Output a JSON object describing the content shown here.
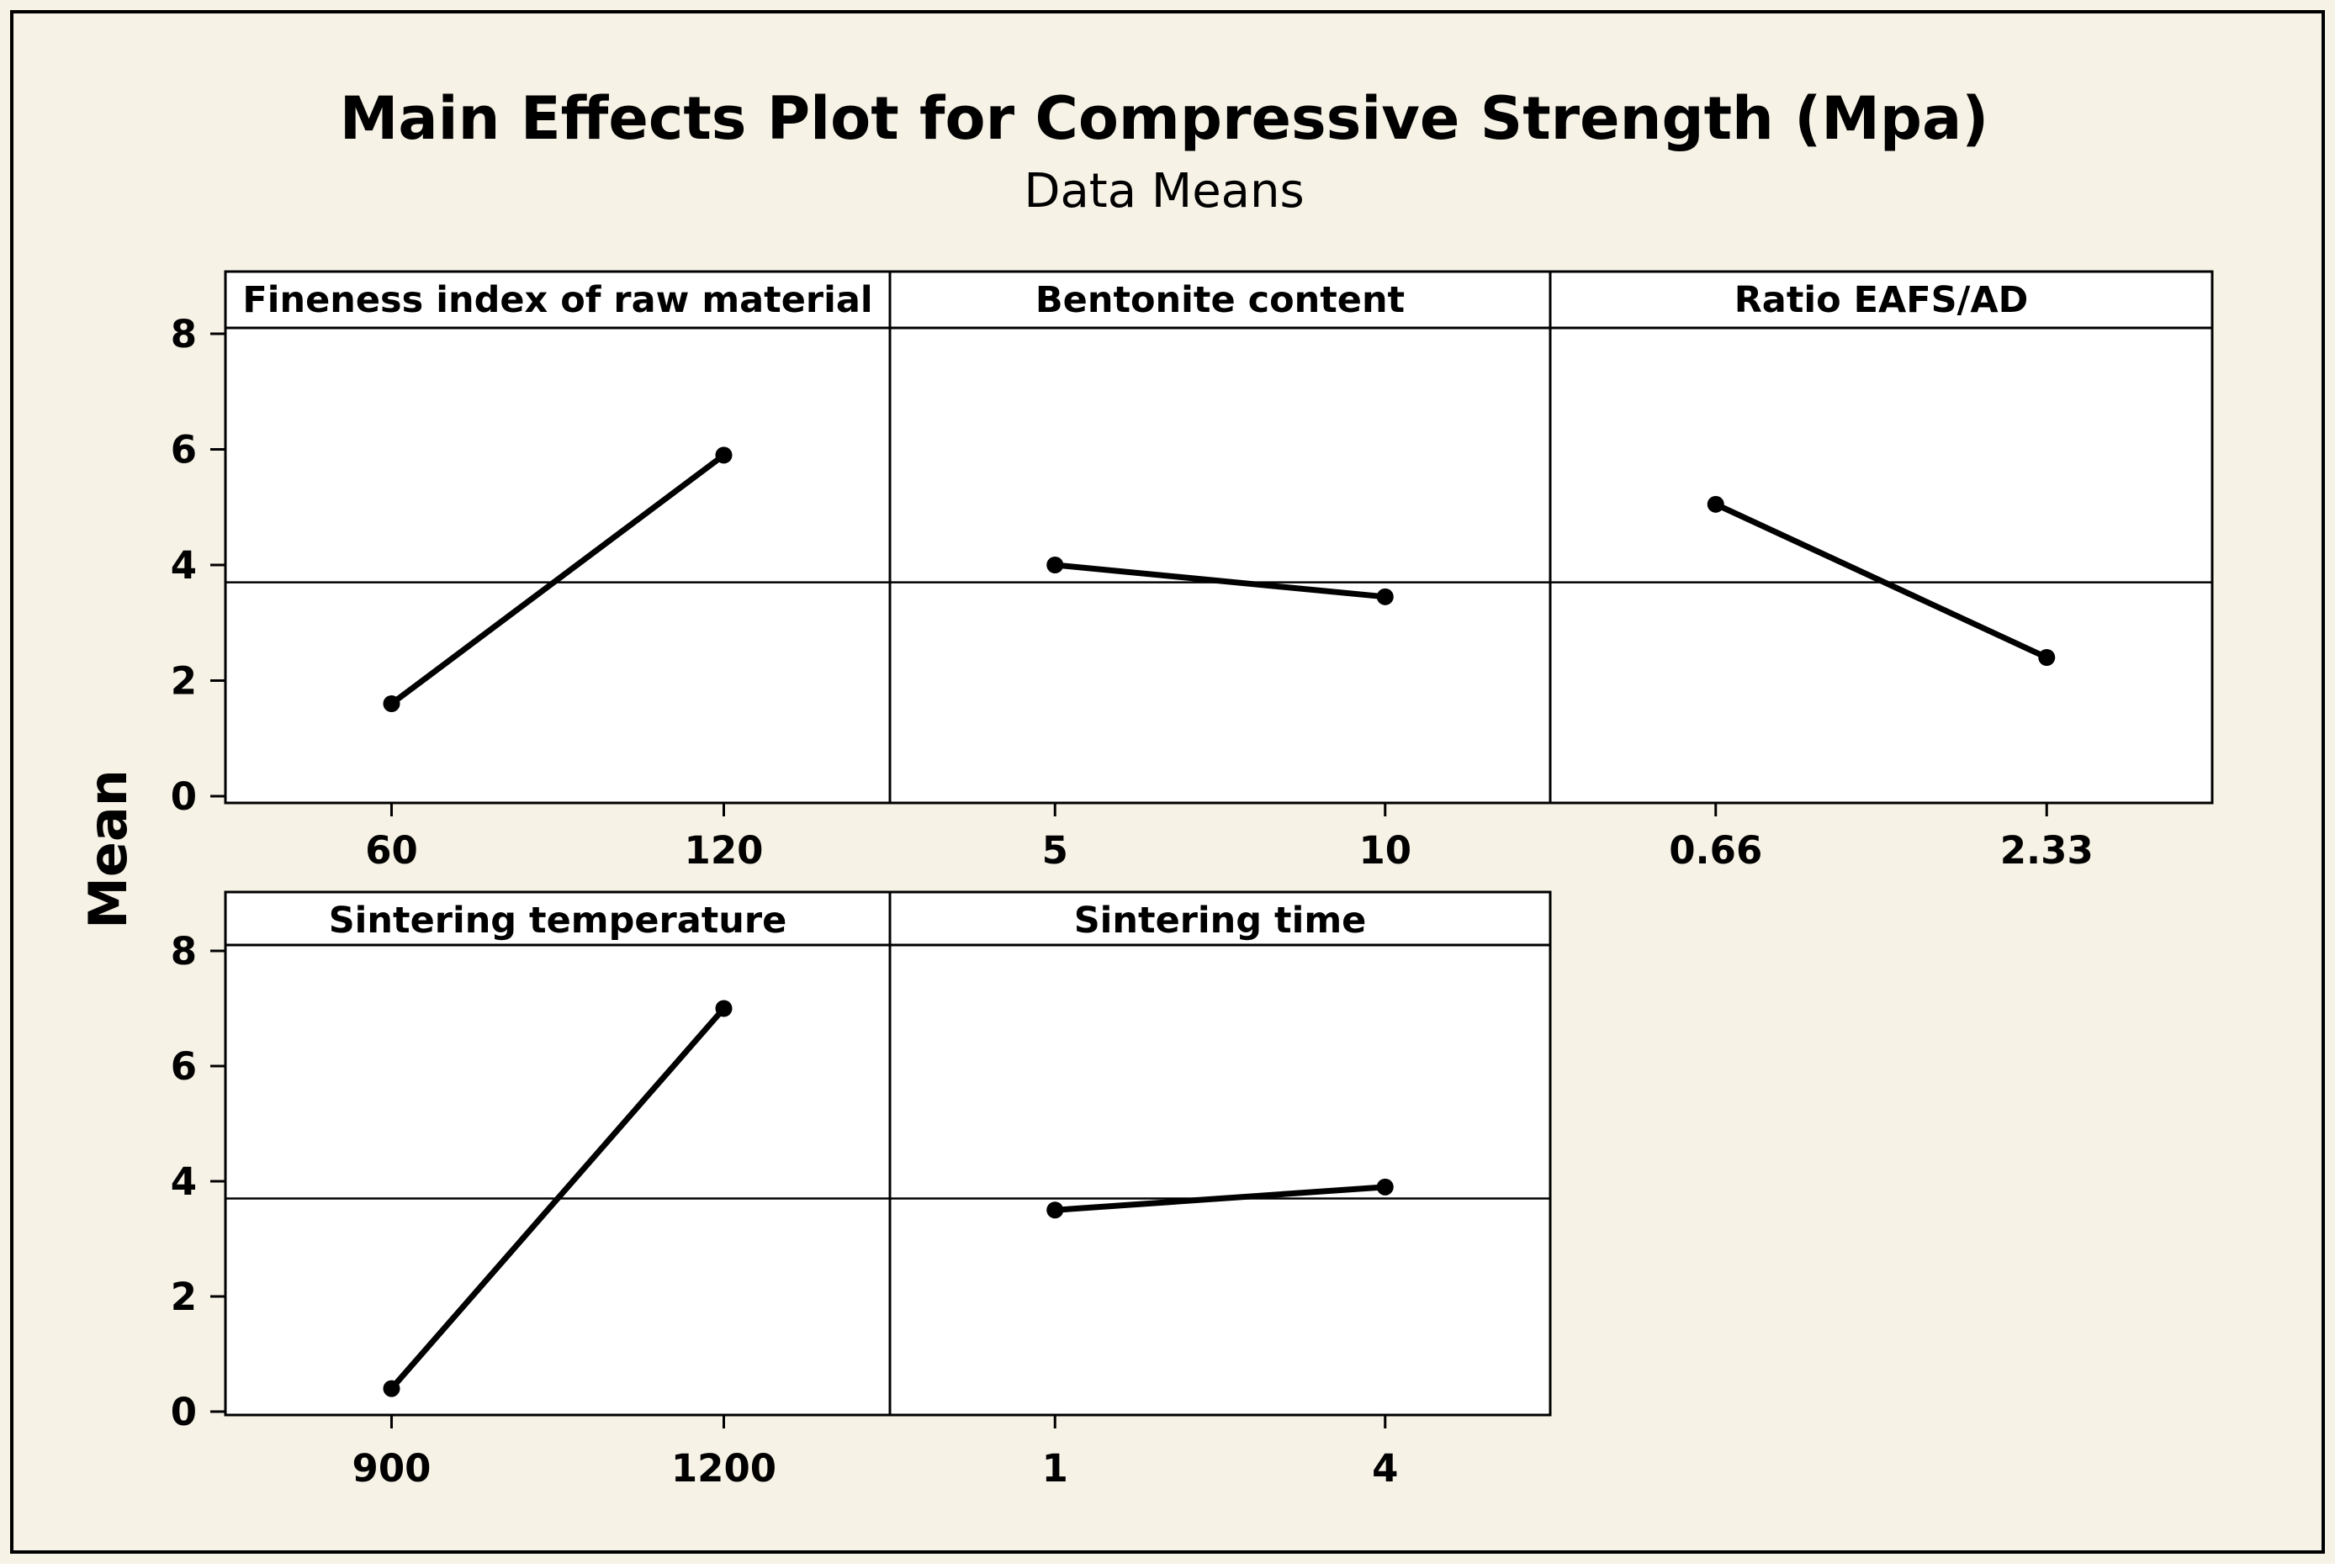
{
  "chart_data": {
    "type": "line",
    "title": "Main Effects Plot for Compressive Strength (Mpa)",
    "subtitle": "Data Means",
    "ylabel": "Mean",
    "ylim": [
      0,
      8
    ],
    "yticks": [
      0,
      2,
      4,
      6,
      8
    ],
    "grand_mean": 3.7,
    "colors": {
      "background": "#f7f2e6",
      "panel": "#ffffff",
      "line": "#000000"
    },
    "panels": [
      {
        "title": "Fineness index of raw material",
        "levels": [
          "60",
          "120"
        ],
        "means": [
          1.6,
          5.9
        ]
      },
      {
        "title": "Bentonite content",
        "levels": [
          "5",
          "10"
        ],
        "means": [
          4.0,
          3.45
        ]
      },
      {
        "title": "Ratio EAFS/AD",
        "levels": [
          "0.66",
          "2.33"
        ],
        "means": [
          5.05,
          2.4
        ]
      },
      {
        "title": "Sintering temperature",
        "levels": [
          "900",
          "1200"
        ],
        "means": [
          0.4,
          7.0
        ]
      },
      {
        "title": "Sintering time",
        "levels": [
          "1",
          "4"
        ],
        "means": [
          3.5,
          3.9
        ]
      }
    ]
  }
}
